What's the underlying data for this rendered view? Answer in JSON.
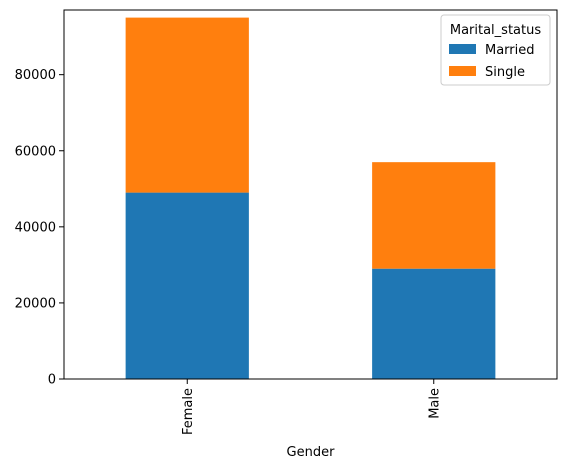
{
  "chart_data": {
    "type": "bar",
    "stacked": true,
    "categories": [
      "Female",
      "Male"
    ],
    "series": [
      {
        "name": "Married",
        "values": [
          49000,
          29000
        ],
        "color": "#1f77b4"
      },
      {
        "name": "Single",
        "values": [
          46000,
          28000
        ],
        "color": "#ff7f0e"
      }
    ],
    "xlabel": "Gender",
    "ylabel": "",
    "ylim": [
      0,
      97000
    ],
    "yticks": [
      0,
      20000,
      40000,
      60000,
      80000
    ],
    "legend": {
      "title": "Marital_status",
      "position": "top-right"
    },
    "grid": false
  }
}
